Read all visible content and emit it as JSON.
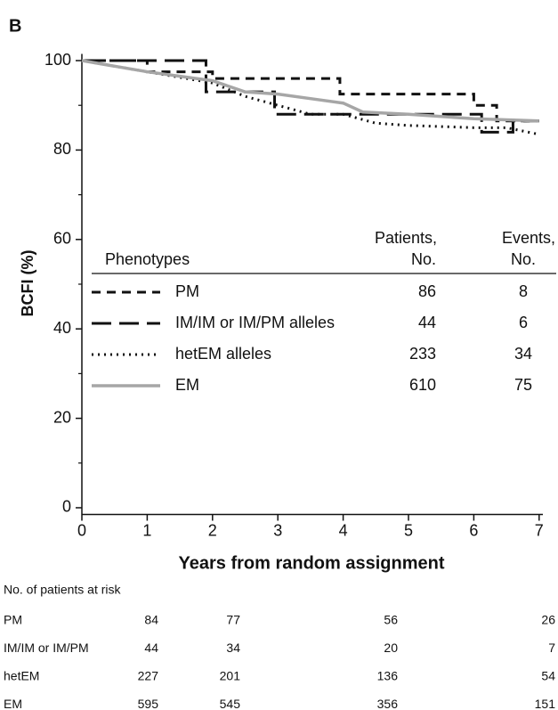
{
  "chart_data": {
    "type": "line",
    "panel_label": "B",
    "ylabel": "BCFI (%)",
    "xlabel": "Years from random assignment",
    "xlim": [
      0,
      7.03
    ],
    "ylim": [
      -1.5,
      101.5
    ],
    "xticks": [
      0,
      1,
      2,
      3,
      4,
      5,
      6,
      7
    ],
    "yticks": [
      0,
      20,
      40,
      60,
      80,
      100
    ],
    "yminorticks": [
      10,
      30,
      50,
      70,
      90
    ],
    "series": [
      {
        "name": "PM",
        "color": "#111111",
        "dash": "10,7",
        "width": 3,
        "x": [
          0,
          1.0,
          1.0,
          2.0,
          2.0,
          3.95,
          3.95,
          6.0,
          6.0,
          6.35,
          6.35,
          7.0
        ],
        "values": [
          100,
          100,
          97.5,
          97.5,
          96,
          96,
          92.5,
          92.5,
          90,
          90,
          86.5,
          86.5
        ]
      },
      {
        "name": "IM/IM or IM/PM alleles",
        "color": "#111111",
        "dash": "22,9",
        "width": 3,
        "x": [
          0,
          1.9,
          1.9,
          2.95,
          2.95,
          6.12,
          6.12,
          6.6,
          6.6,
          7.0
        ],
        "values": [
          100,
          100,
          93,
          93,
          88,
          88,
          84,
          84,
          86.5,
          86.5
        ]
      },
      {
        "name": "hetEM alleles",
        "color": "#111111",
        "dash": "2,5",
        "width": 3,
        "x": [
          0,
          1,
          2,
          2.5,
          3,
          3.5,
          4,
          4.5,
          5,
          6,
          6.5,
          7
        ],
        "values": [
          100,
          97.5,
          95,
          92,
          90,
          88,
          88,
          86,
          85.5,
          85,
          85,
          83.5
        ]
      },
      {
        "name": "EM",
        "color": "#a6a6a6",
        "dash": "none",
        "width": 3.5,
        "x": [
          0,
          1,
          2,
          2.5,
          3,
          3.5,
          4,
          4.3,
          5,
          6,
          7
        ],
        "values": [
          100,
          97.5,
          95.5,
          93,
          92.5,
          91.5,
          90.5,
          88.5,
          88,
          87,
          86.5
        ]
      }
    ],
    "legend": {
      "title": "Phenotypes",
      "patients_header": [
        "Patients,",
        "No."
      ],
      "events_header": [
        "Events,",
        "No."
      ],
      "patients": [
        86,
        44,
        233,
        610
      ],
      "events": [
        8,
        6,
        34,
        75
      ]
    },
    "risk_table": {
      "title": "No. of patients at risk",
      "rows": [
        {
          "label": "PM",
          "values": [
            84,
            77,
            56,
            26
          ]
        },
        {
          "label": "IM/IM or IM/PM",
          "values": [
            44,
            34,
            20,
            7
          ]
        },
        {
          "label": "hetEM",
          "values": [
            227,
            201,
            136,
            54
          ]
        },
        {
          "label": "EM",
          "values": [
            595,
            545,
            356,
            151
          ]
        }
      ]
    }
  }
}
